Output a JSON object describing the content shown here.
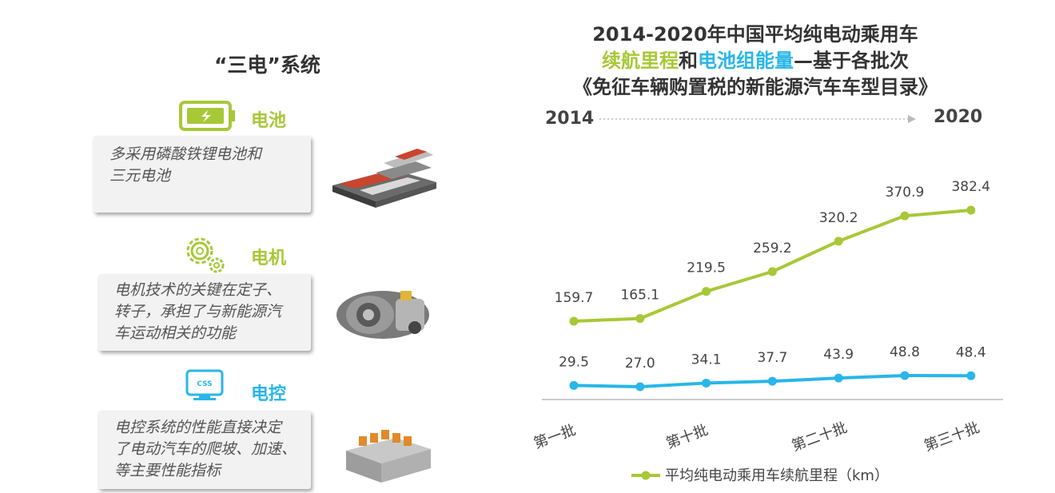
{
  "left_panel": {
    "title": "“三电”系统",
    "items": [
      {
        "label": "电池",
        "icon": "battery-icon",
        "description_lines": [
          "多采用磷酸铁锂电池和",
          "三元电池"
        ]
      },
      {
        "label": "电机",
        "icon": "gear-icon",
        "description_lines": [
          "电机技术的关键在定子、",
          "转子，承担了与新能源汽",
          "车运动相关的功能"
        ]
      },
      {
        "label": "电控",
        "icon": "css-monitor-icon",
        "description_lines": [
          "电控系统的性能直接决定",
          "了电动汽车的爬坡、加速、",
          "等主要性能指标"
        ]
      }
    ]
  },
  "chart_title": {
    "line1": "2014-2020年中国平均纯电动乘用车",
    "line2_part1": "续航里程",
    "line2_part2": "和",
    "line2_part3": "电池组能量",
    "line2_part4": "—基于各批次",
    "line3": "《免征车辆购置税的新能源汽车车型目录》"
  },
  "timeline": {
    "start": "2014",
    "end": "2020"
  },
  "colors": {
    "green": "#a7c837",
    "blue": "#29b6e8",
    "text": "#333333"
  },
  "chart_data": {
    "type": "line",
    "x": [
      "第一批",
      "",
      "第十批",
      "",
      "第二十批",
      "",
      "第三十批"
    ],
    "x_tick_labels": [
      "第一批",
      "第十批",
      "第二十批",
      "第三十批"
    ],
    "series": [
      {
        "name": "平均纯电动乘用车续航里程（km）",
        "color": "#a7c837",
        "values": [
          159.7,
          165.1,
          219.5,
          259.2,
          320.2,
          370.9,
          382.4
        ]
      },
      {
        "name": "",
        "color": "#29b6e8",
        "values": [
          29.5,
          27.0,
          34.1,
          37.7,
          43.9,
          48.8,
          48.4
        ]
      }
    ],
    "value_labels": [
      [
        "159.7",
        "165.1",
        "219.5",
        "259.2",
        "320.2",
        "370.9",
        "382.4"
      ],
      [
        "29.5",
        "27.0",
        "34.1",
        "37.7",
        "43.9",
        "48.8",
        "48.4"
      ]
    ],
    "legend": {
      "label": "平均纯电动乘用车续航里程（km）",
      "placement": "bottom"
    },
    "grid": false
  }
}
